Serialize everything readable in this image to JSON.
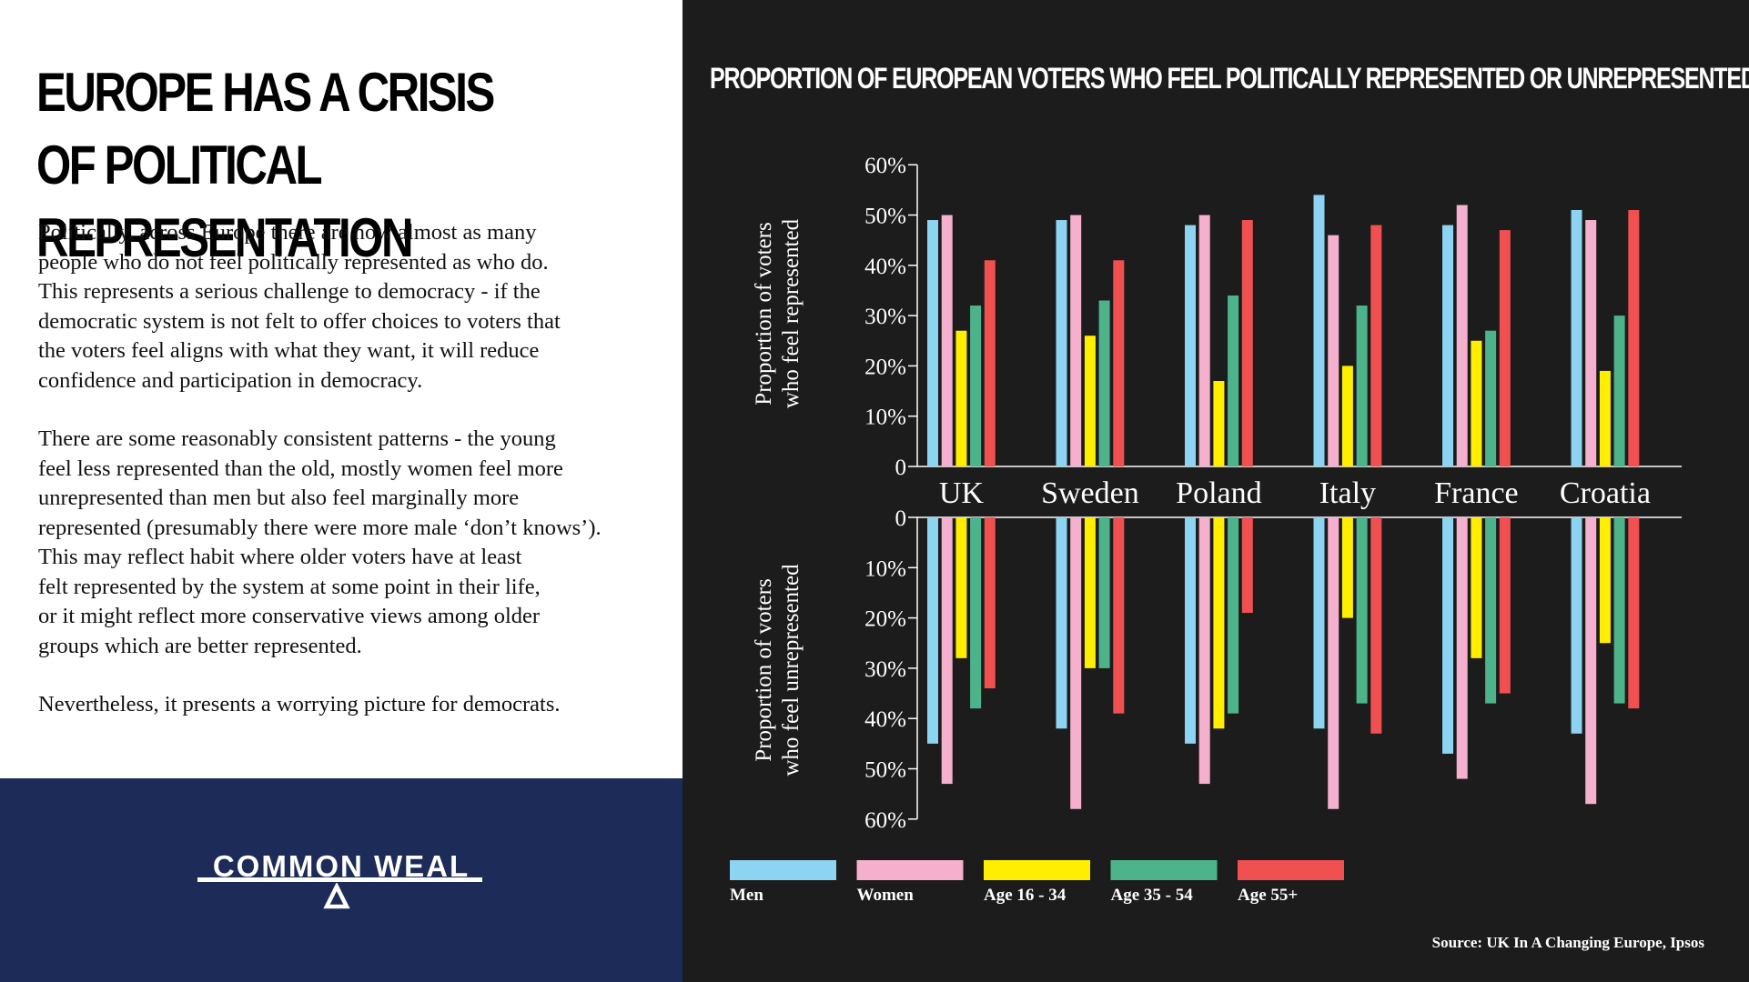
{
  "headline": "EUROPE HAS A CRISIS OF POLITICAL REPRESENTATION",
  "paragraphs": [
    "Politically, across Europe there are now almost as many\npeople who do not feel politically represented as who do.\nThis represents a serious challenge to democracy - if the\ndemocratic system is not felt to offer choices to voters that\nthe voters feel aligns with what they want, it will reduce\nconfidence and participation in democracy.",
    "There are some reasonably consistent patterns - the young\nfeel less represented than the old, mostly women feel more\nunrepresented than men but also feel marginally more\nrepresented (presumably there were more male ‘don’t knows’).\nThis may reflect habit where older voters have at least\nfelt represented by the system at some point in their life,\nor it might reflect more conservative views among older\ngroups which are better represented.",
    "Nevertheless, it presents a worrying picture for democrats."
  ],
  "brand": "COMMON WEAL",
  "source": "Source: UK In A Changing Europe, Ipsos",
  "chart_data": {
    "type": "bar",
    "title": "PROPORTION OF EUROPEAN VOTERS WHO FEEL POLITICALLY REPRESENTED OR UNREPRESENTED",
    "categories": [
      "UK",
      "Sweden",
      "Poland",
      "Italy",
      "France",
      "Croatia"
    ],
    "top_ylabel": [
      "Proportion of voters",
      "who feel represented"
    ],
    "bottom_ylabel": [
      "Proportion of voters",
      "who feel unrepresented"
    ],
    "ylim": [
      0,
      60
    ],
    "ticks": [
      "0",
      "10%",
      "20%",
      "30%",
      "40%",
      "50%",
      "60%"
    ],
    "legend_placement": "bottom-left",
    "series": [
      {
        "name": "Men",
        "color": "#8dd4f2",
        "represented": [
          49,
          49,
          48,
          54,
          48,
          51
        ],
        "unrepresented": [
          45,
          42,
          45,
          42,
          47,
          43
        ]
      },
      {
        "name": "Women",
        "color": "#f4b0cc",
        "represented": [
          50,
          50,
          50,
          46,
          52,
          49
        ],
        "unrepresented": [
          53,
          58,
          53,
          58,
          52,
          57
        ]
      },
      {
        "name": "Age 16 - 34",
        "color": "#ffee00",
        "represented": [
          27,
          26,
          17,
          20,
          25,
          19
        ],
        "unrepresented": [
          28,
          30,
          42,
          20,
          28,
          25
        ]
      },
      {
        "name": "Age 35 - 54",
        "color": "#4db38a",
        "represented": [
          32,
          33,
          34,
          32,
          27,
          30
        ],
        "unrepresented": [
          38,
          30,
          39,
          37,
          37,
          37
        ]
      },
      {
        "name": "Age 55+",
        "color": "#f05050",
        "represented": [
          41,
          41,
          49,
          48,
          47,
          51
        ],
        "unrepresented": [
          34,
          39,
          19,
          43,
          35,
          38
        ]
      }
    ]
  }
}
